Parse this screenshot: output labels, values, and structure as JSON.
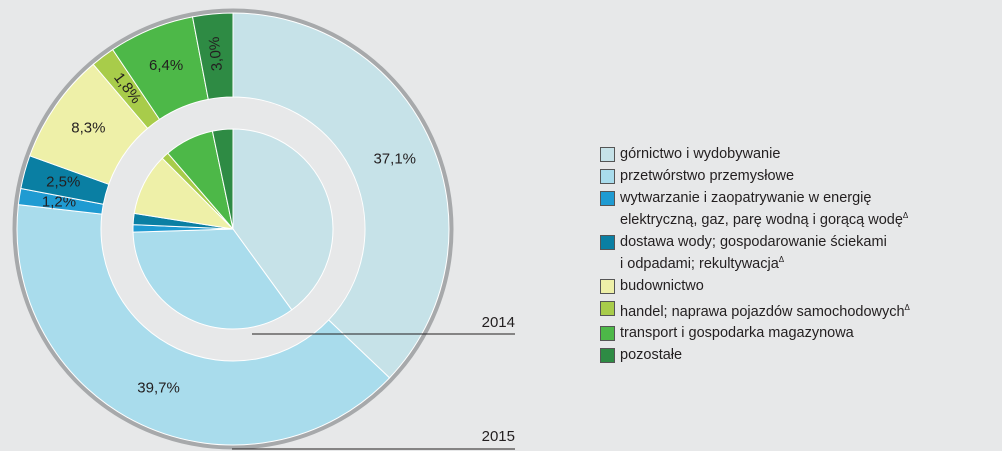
{
  "chart_data": {
    "type": "nested-donut",
    "categories": [
      "górnictwo i wydobywanie",
      "przetwórstwo przemysłowe",
      "wytwarzanie i zaopatrywanie w energię\nelektryczną, gaz, parę wodną i gorącą wodę",
      "dostawa wody; gospodarowanie ściekami\ni odpadami; rekultywacja",
      "budownictwo",
      "handel; naprawa pojazdów samochodowych",
      "transport i gospodarka magazynowa",
      "pozostałe"
    ],
    "category_marks": [
      null,
      null,
      "Δ",
      "Δ",
      null,
      "Δ",
      null,
      null
    ],
    "colors": [
      "#c6e2e8",
      "#a9dcec",
      "#1f9bd2",
      "#0a7fa3",
      "#eef0a8",
      "#a8cc4a",
      "#4db848",
      "#2e8b44"
    ],
    "series": [
      {
        "name": "2015",
        "values": [
          37.1,
          39.7,
          1.2,
          2.5,
          8.3,
          1.8,
          6.4,
          3.0
        ],
        "value_labels": [
          "37,1%",
          "39,7%",
          "1,2%",
          "2,5%",
          "8,3%",
          "1,8%",
          "6,4%",
          "3,0%"
        ]
      },
      {
        "name": "2014",
        "values": [
          40,
          34.5,
          1.2,
          1.8,
          10,
          1.2,
          8,
          3.3
        ]
      }
    ]
  }
}
